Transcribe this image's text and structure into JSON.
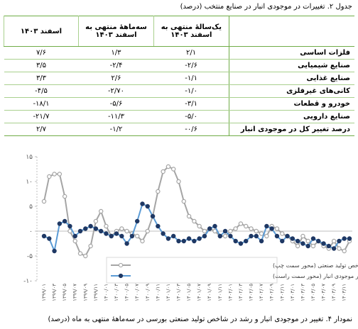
{
  "table": {
    "title": "جدول ۲. تغییرات در موجودی انبار در صنایع منتخب (درصد)",
    "headers": [
      "یک‌سالهٔ منتهی به اسفند ۱۴۰۳",
      "سه‌ماههٔ منتهی به اسفند ۱۴۰۳",
      "اسفند ۱۴۰۳"
    ],
    "rows": [
      [
        "فلزات اساسی",
        "۲/۱",
        "۱/۳",
        "۷/۶"
      ],
      [
        "صنایع شیمیایی",
        "-۲/۶",
        "-۲/۴",
        "۳/۵"
      ],
      [
        "صنایع غذایی",
        "-۱/۱",
        "۲/۶",
        "۳/۳"
      ],
      [
        "کانی‌های غیرفلزی",
        "-۱/۰",
        "-۲/۷۰",
        "-۴/۵"
      ],
      [
        "خودرو و قطعات",
        "-۳/۱",
        "-۵/۶",
        "-۱۸/۱"
      ],
      [
        "صنایع دارویی",
        "-۵/۰",
        "-۱۱/۳",
        "-۲۱/۷"
      ],
      [
        "درصد تغییر کل در موجودی انبار",
        "-۰/۶",
        "-۱/۲",
        "۲/۷"
      ]
    ]
  },
  "chart_data": {
    "type": "line",
    "categories": [
      "۱۳۹۹/۰۱",
      null,
      "۱۳۹۹/۰۳",
      null,
      "۱۳۹۹/۰۵",
      null,
      "۱۳۹۹/۰۷",
      null,
      "۱۳۹۹/۰۹",
      null,
      "۱۳۹۹/۱۱",
      null,
      "۱۴۰۰/۰۱",
      null,
      "۱۴۰۰/۰۳",
      null,
      "۱۴۰۰/۰۵",
      null,
      "۱۴۰۰/۰۷",
      null,
      "۱۴۰۰/۰۹",
      null,
      "۱۴۰۰/۱۱",
      null,
      "۱۴۰۱/۰۱",
      null,
      "۱۴۰۱/۰۳",
      null,
      "۱۴۰۱/۰۵",
      null,
      "۱۴۰۱/۰۷",
      null,
      "۱۴۰۱/۰۹",
      null,
      "۱۴۰۱/۱۱",
      null,
      "۱۴۰۲/۰۱",
      null,
      "۱۴۰۲/۰۳",
      null,
      "۱۴۰۲/۰۵",
      null,
      "۱۴۰۲/۰۷",
      null,
      "۱۴۰۲/۰۹",
      null,
      "۱۴۰۲/۱۱",
      null,
      "۱۴۰۳/۰۱",
      null,
      "۱۴۰۳/۰۳",
      null,
      "۱۴۰۳/۰۵",
      null,
      "۱۴۰۳/۰۷",
      null,
      "۱۴۰۳/۰۹",
      null,
      "۱۴۰۳/۱۱",
      null
    ],
    "series": [
      {
        "name": "رشد سه ماهه شاخص تولید صنعتی (محور سمت چپ)",
        "color": "#a5a5a5",
        "marker_fill": "#ffffff",
        "values": [
          6,
          11,
          11.5,
          11.5,
          7,
          0,
          -2,
          -4.5,
          -5,
          -3,
          2,
          4,
          1,
          -1,
          0,
          0.5,
          0,
          -0.5,
          -1,
          -2,
          0,
          3,
          8,
          12,
          13,
          12.5,
          10,
          6,
          3,
          2,
          1,
          0,
          0.5,
          0,
          -1,
          -1,
          0,
          0.5,
          1.5,
          1,
          0.5,
          0,
          -0.5,
          -1,
          1,
          0.5,
          -0.5,
          -1,
          -2,
          -3,
          -1,
          -2,
          -3,
          -2,
          -3,
          -3.5,
          -2,
          -3.5,
          -4,
          -2
        ]
      },
      {
        "name": "درصد تغییر سه ماهه در موجودی انبار (محور سمت راست)",
        "color": "#5b9bd5",
        "marker_fill": "#1f3864",
        "values": [
          -1,
          -1.5,
          -4,
          1.5,
          2,
          1,
          -1,
          0,
          0.5,
          1,
          0.5,
          0,
          -0.5,
          -1,
          -0.5,
          -1,
          -2.5,
          -1,
          2,
          5.5,
          5,
          3,
          1,
          -0.5,
          -1.5,
          -1,
          -2,
          -2,
          -1.5,
          -2,
          -1.5,
          -1,
          0.5,
          1,
          -1,
          0,
          -1,
          -2,
          -2.5,
          -2,
          -1,
          -1,
          -2,
          1,
          0.5,
          -1,
          -2,
          -1,
          -1.5,
          -2,
          -2.5,
          -3,
          -1.5,
          -2,
          -2.5,
          -3,
          -3.5,
          -2,
          -1.5,
          -1.5
        ]
      }
    ],
    "ylim": [
      -10,
      15
    ],
    "yticks": [
      {
        "value": -10,
        "label": "-۱۰"
      },
      {
        "value": -5,
        "label": "-۵"
      },
      {
        "value": 0,
        "label": "۰"
      },
      {
        "value": 5,
        "label": "۵"
      },
      {
        "value": 10,
        "label": "۱۰"
      },
      {
        "value": 15,
        "label": "۱۵"
      }
    ],
    "grid": false
  },
  "caption": "نمودار ۴. تغییر در موجودی انبار و رشد در شاخص تولید صنعتی بورسی در سه‌ماههٔ منتهی به ماه (درصد)"
}
